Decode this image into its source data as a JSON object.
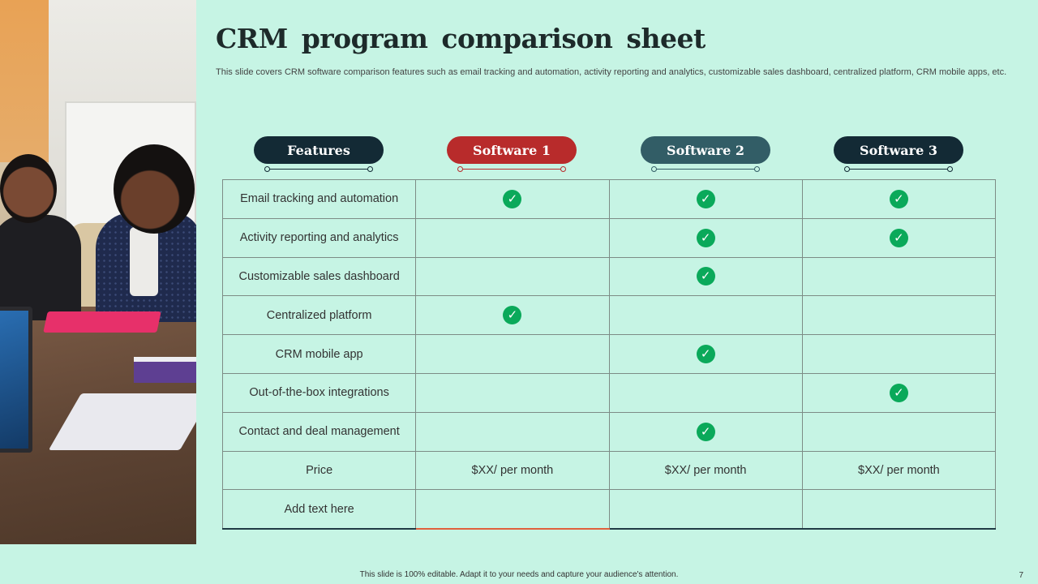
{
  "slide": {
    "title": "CRM program comparison sheet",
    "subtitle": "This slide covers CRM software comparison features such as email tracking and automation, activity reporting and analytics, customizable sales dashboard, centralized platform, CRM mobile apps, etc.",
    "footer": "This slide is 100% editable. Adapt it to your needs and capture your audience's attention.",
    "page_number": "7"
  },
  "headers": [
    {
      "label": "Features",
      "color": "#132a35"
    },
    {
      "label": "Software 1",
      "color": "#b82b2b"
    },
    {
      "label": "Software 2",
      "color": "#325d66"
    },
    {
      "label": "Software 3",
      "color": "#132a35"
    }
  ],
  "check_icon": "check-circle-icon",
  "check_color": "#0aa95a",
  "rows": [
    {
      "feature": "Email tracking and automation",
      "s1": true,
      "s2": true,
      "s3": true
    },
    {
      "feature": "Activity reporting and analytics",
      "s1": false,
      "s2": true,
      "s3": true
    },
    {
      "feature": "Customizable sales dashboard",
      "s1": false,
      "s2": true,
      "s3": false
    },
    {
      "feature": "Centralized platform",
      "s1": true,
      "s2": false,
      "s3": false
    },
    {
      "feature": "CRM mobile app",
      "s1": false,
      "s2": true,
      "s3": false
    },
    {
      "feature": "Out-of-the-box integrations",
      "s1": false,
      "s2": false,
      "s3": true
    },
    {
      "feature": "Contact and deal management",
      "s1": false,
      "s2": true,
      "s3": false
    }
  ],
  "price_row": {
    "label": "Price",
    "s1": "$XX/ per month",
    "s2": "$XX/ per month",
    "s3": "$XX/ per month"
  },
  "extra_row": {
    "label": "Add text here"
  }
}
